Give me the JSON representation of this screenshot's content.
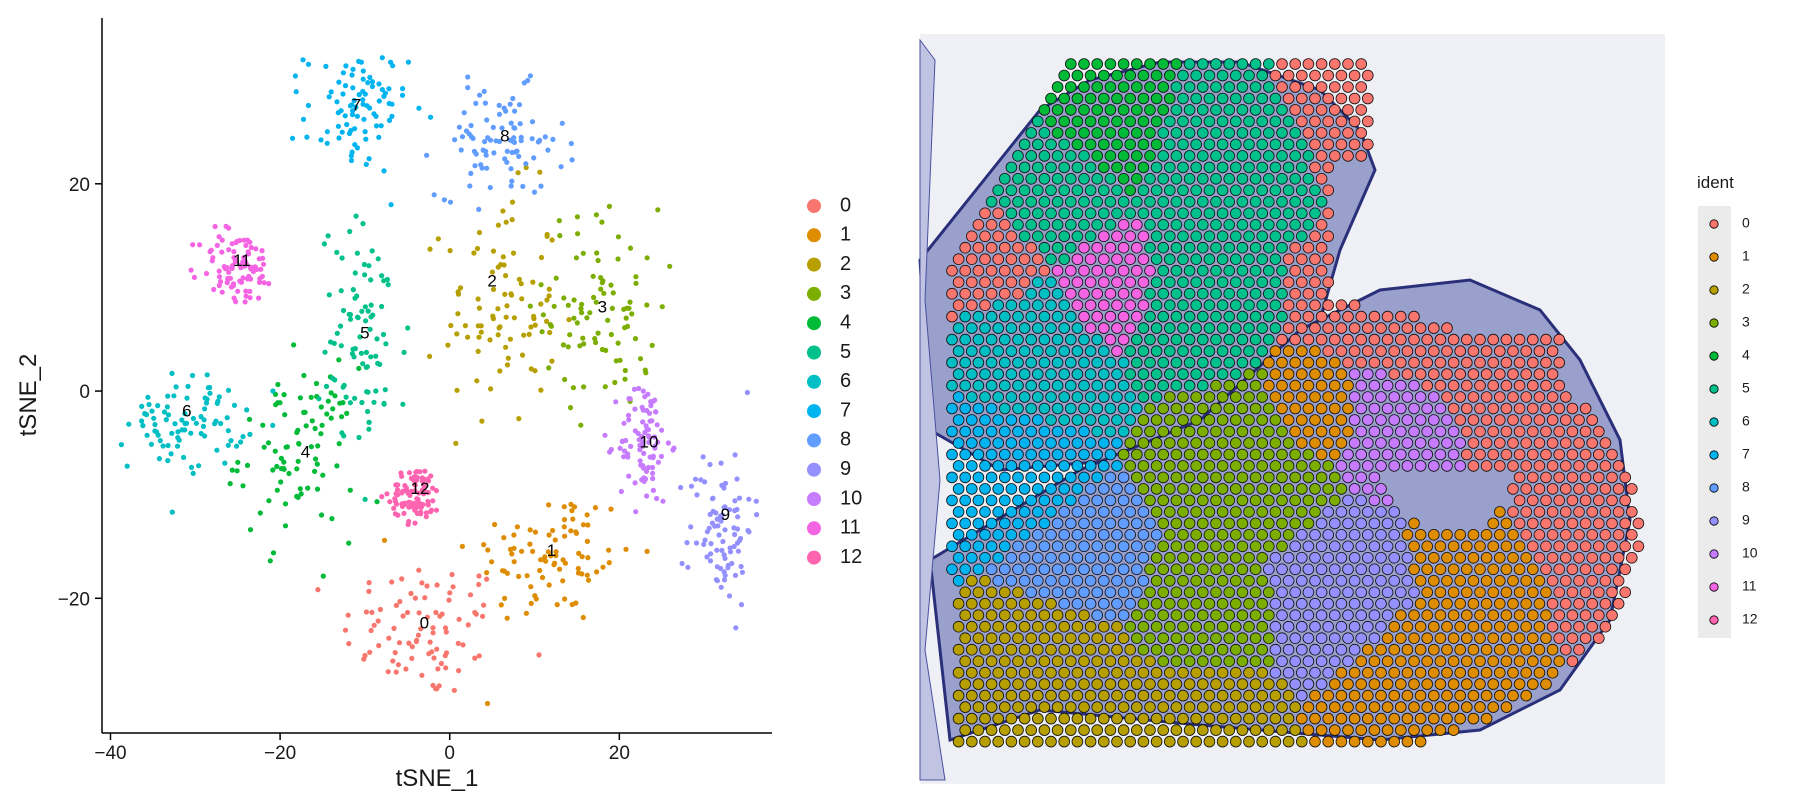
{
  "chart_data": [
    {
      "type": "scatter",
      "title": "",
      "xlabel": "tSNE_1",
      "ylabel": "tSNE_2",
      "xlim": [
        -41,
        38
      ],
      "ylim": [
        -33,
        36
      ],
      "x_ticks": [
        "-40",
        "-20",
        "0",
        "20"
      ],
      "y_ticks": [
        "-20",
        "0",
        "20"
      ],
      "grid": false,
      "legend_position": "right",
      "clusters": [
        {
          "name": "0",
          "color": "#F8766D",
          "x": -3,
          "y": -23,
          "spread": [
            6.5,
            4.5
          ],
          "label_pos": [
            -3,
            -22.5
          ]
        },
        {
          "name": "1",
          "color": "#DE8C00",
          "x": 12,
          "y": -16,
          "spread": [
            6.5,
            4.5
          ],
          "label_pos": [
            12,
            -15.5
          ]
        },
        {
          "name": "2",
          "color": "#B79F00",
          "x": 6,
          "y": 8,
          "spread": [
            4.5,
            7.5
          ],
          "label_pos": [
            5,
            10.5
          ]
        },
        {
          "name": "3",
          "color": "#7CAE00",
          "x": 18,
          "y": 8,
          "spread": [
            4.5,
            6.5
          ],
          "label_pos": [
            18,
            8
          ]
        },
        {
          "name": "4",
          "color": "#00BA38",
          "x": -18,
          "y": -6,
          "spread": [
            4.5,
            5.5
          ],
          "label_pos": [
            -17,
            -6
          ]
        },
        {
          "name": "5",
          "color": "#00C08B",
          "x": -10,
          "y": 5,
          "spread": [
            3.5,
            7.5
          ],
          "label_pos": [
            -10,
            5.5
          ]
        },
        {
          "name": "6",
          "color": "#00BFC4",
          "x": -31,
          "y": -3,
          "spread": [
            4.5,
            3
          ],
          "label_pos": [
            -31,
            -2
          ]
        },
        {
          "name": "7",
          "color": "#00B4F0",
          "x": -11,
          "y": 27,
          "spread": [
            4,
            4
          ],
          "label_pos": [
            -11,
            27.5
          ]
        },
        {
          "name": "8",
          "color": "#619CFF",
          "x": 6,
          "y": 24,
          "spread": [
            5,
            3.5
          ],
          "label_pos": [
            6.5,
            24.5
          ]
        },
        {
          "name": "9",
          "color": "#9590FF",
          "x": 32,
          "y": -13,
          "spread": [
            2.5,
            5
          ],
          "label_pos": [
            32.5,
            -12
          ]
        },
        {
          "name": "10",
          "color": "#C77CFF",
          "x": 23,
          "y": -5,
          "spread": [
            2,
            4
          ],
          "label_pos": [
            23.5,
            -5
          ]
        },
        {
          "name": "11",
          "color": "#F564E3",
          "x": -25,
          "y": 12,
          "spread": [
            3,
            2.5
          ],
          "label_pos": [
            -24.5,
            12.5
          ]
        },
        {
          "name": "12",
          "color": "#FF64B0",
          "x": -4,
          "y": -10,
          "spread": [
            2,
            1.8
          ],
          "label_pos": [
            -3.5,
            -9.5
          ]
        }
      ]
    },
    {
      "type": "scatter",
      "subtype": "spatial-spots-on-tissue",
      "legend_title": "ident",
      "legend_position": "right",
      "clusters": [
        "0",
        "1",
        "2",
        "3",
        "4",
        "5",
        "6",
        "7",
        "8",
        "9",
        "10",
        "11",
        "12"
      ]
    }
  ]
}
